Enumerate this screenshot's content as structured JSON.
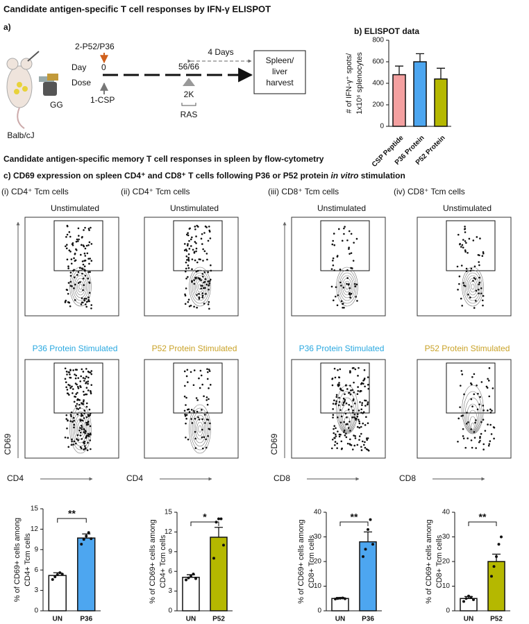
{
  "title": "Candidate antigen-specific T cell responses by IFN-γ  ELISPOT",
  "panel_a": {
    "label": "a)",
    "mouse": "Balb/cJ",
    "device": "GG",
    "boost": "2-P52/P36",
    "day": "Day",
    "day0": "0",
    "dose": "Dose",
    "prime": "1-CSP",
    "day_late": "56/66",
    "rest": "4 Days",
    "boost2": "2K",
    "ras": "RAS",
    "harvest": [
      "Spleen/",
      "liver",
      "harvest"
    ]
  },
  "section_title": "Candidate antigen-specific memory T cell responses in spleen by flow-cytometry",
  "panel_c_title": [
    "c) CD69 expression on spleen CD4⁺ and CD8⁺ T cells following P36 or P52 protein ",
    "in vitro",
    " stimulation"
  ],
  "flow_panels": [
    {
      "label": "(i) CD4⁺ Tcm cells",
      "top_label": "Unstimulated",
      "bottom_label": "P36 Protein  Stimulated",
      "bottom_color": "#29a8e0",
      "y_axis": "CD69",
      "x_axis": "CD4"
    },
    {
      "label": "(ii) CD4⁺ Tcm cells",
      "top_label": "Unstimulated",
      "bottom_label": "P52 Protein  Stimulated",
      "bottom_color": "#c9a227",
      "x_axis": "CD4"
    },
    {
      "label": "(iii) CD8⁺ Tcm cells",
      "top_label": "Unstimulated",
      "bottom_label": "P36 Protein  Stimulated",
      "bottom_color": "#29a8e0",
      "y_axis": "CD69",
      "x_axis": "CD8"
    },
    {
      "label": "(iv) CD8⁺ Tcm cells",
      "top_label": "Unstimulated",
      "bottom_label": "P52 Protein  Stimulated",
      "bottom_color": "#c9a227",
      "x_axis": "CD8"
    }
  ],
  "chart_data": [
    {
      "type": "bar",
      "title": "b) ELISPOT data",
      "ylabel": [
        "# of IFN-γ⁺ spots/",
        "1x10⁶ splenocytes"
      ],
      "categories": [
        "CSP Peptide",
        "P36 Protein",
        "P52 Protein"
      ],
      "values": [
        480,
        600,
        440
      ],
      "errors": [
        80,
        75,
        100
      ],
      "colors": [
        "#f4a0a0",
        "#4da6f0",
        "#b5b800"
      ],
      "ylim": [
        0,
        800
      ],
      "yticks": [
        0,
        200,
        400,
        600,
        800
      ],
      "x_label_rotation": -45
    },
    {
      "type": "bar",
      "ylabel": [
        "% of CD69+ cells among",
        "CD4+ Tcm cells"
      ],
      "categories": [
        "UN",
        "P36"
      ],
      "values": [
        5.2,
        10.7
      ],
      "errors": [
        0.4,
        0.6
      ],
      "colors": [
        "#ffffff",
        "#4da6f0"
      ],
      "points": [
        [
          4.6,
          5.0,
          5.3,
          5.6,
          5.4
        ],
        [
          9.8,
          10.5,
          11,
          11.5,
          10.6
        ]
      ],
      "ylim": [
        0,
        15
      ],
      "yticks": [
        0,
        3,
        6,
        9,
        12,
        15
      ],
      "significance": "**"
    },
    {
      "type": "bar",
      "ylabel": [
        "% of CD69+ cells among",
        "CD4+ Tcm cells"
      ],
      "categories": [
        "UN",
        "P52"
      ],
      "values": [
        5.1,
        11.2
      ],
      "errors": [
        0.4,
        1.5
      ],
      "colors": [
        "#ffffff",
        "#b5b800"
      ],
      "points": [
        [
          4.7,
          5,
          5.3,
          5.6,
          4.9
        ],
        [
          8,
          13.5,
          14,
          14,
          10
        ]
      ],
      "ylim": [
        0,
        15
      ],
      "yticks": [
        0,
        3,
        6,
        9,
        12,
        15
      ],
      "significance": "*"
    },
    {
      "type": "bar",
      "ylabel": [
        "% of CD69+ cells among",
        "CD8+ Tcm cells"
      ],
      "categories": [
        "UN",
        "P36"
      ],
      "values": [
        5,
        28
      ],
      "errors": [
        0.4,
        4
      ],
      "colors": [
        "#ffffff",
        "#4da6f0"
      ],
      "points": [
        [
          4.8,
          5,
          5.1,
          5.2,
          4.9
        ],
        [
          22,
          25,
          33,
          37,
          27
        ]
      ],
      "ylim": [
        0,
        40
      ],
      "yticks": [
        0,
        10,
        20,
        30,
        40
      ],
      "significance": "**"
    },
    {
      "type": "bar",
      "ylabel": [
        "% of CD69+ cells among",
        "CD8+ Tcm cells"
      ],
      "categories": [
        "UN",
        "P52"
      ],
      "values": [
        5,
        20
      ],
      "errors": [
        0.8,
        3
      ],
      "colors": [
        "#ffffff",
        "#b5b800"
      ],
      "points": [
        [
          3.8,
          5,
          6,
          5.5,
          4.5
        ],
        [
          14,
          18,
          22,
          27,
          30
        ]
      ],
      "ylim": [
        0,
        40
      ],
      "yticks": [
        0,
        10,
        20,
        30,
        40
      ],
      "significance": "**"
    }
  ]
}
